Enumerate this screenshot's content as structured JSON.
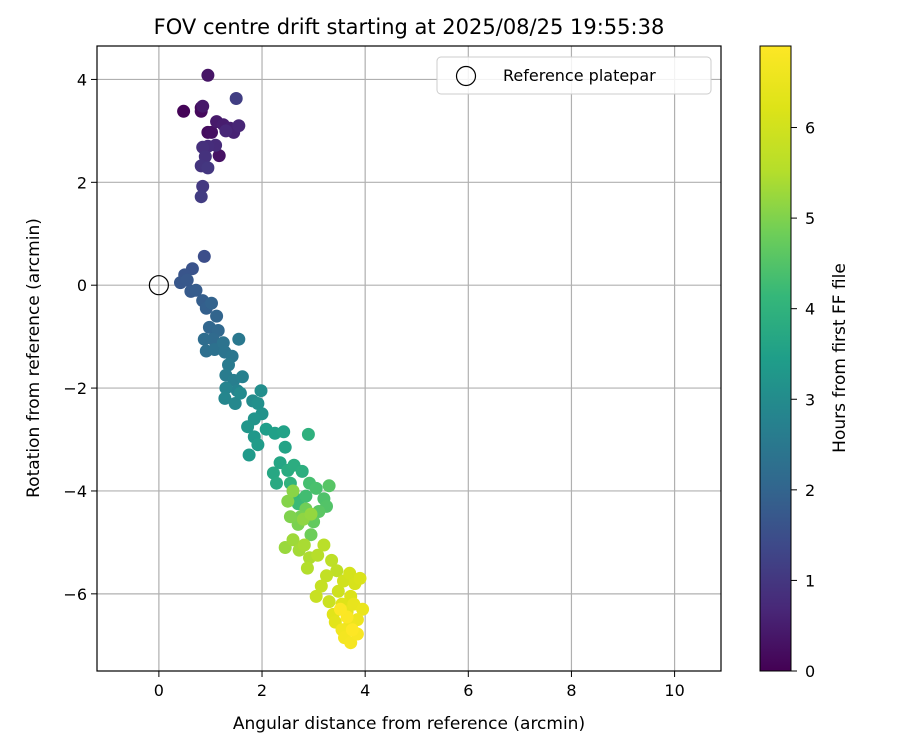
{
  "chart_data": {
    "type": "scatter",
    "title": "FOV centre drift starting at 2025/08/25 19:55:38",
    "xlabel": "Angular distance from reference (arcmin)",
    "ylabel": "Rotation from reference (arcmin)",
    "xlim": [
      -1.2,
      10.9
    ],
    "ylim": [
      -7.5,
      4.65
    ],
    "xticks": [
      0,
      2,
      4,
      6,
      8,
      10
    ],
    "yticks": [
      4,
      2,
      0,
      -2,
      -4,
      -6
    ],
    "xtick_labels": [
      "0",
      "2",
      "4",
      "6",
      "8",
      "10"
    ],
    "ytick_labels": [
      "4",
      "2",
      "0",
      "−2",
      "−4",
      "−6"
    ],
    "grid": true,
    "legend": {
      "position": "top-right",
      "entries": [
        "Reference platepar"
      ]
    },
    "colorbar": {
      "label": "Hours from first FF file",
      "colormap": "viridis",
      "range": [
        0,
        6.9
      ],
      "ticks": [
        0,
        1,
        2,
        3,
        4,
        5,
        6
      ],
      "tick_labels": [
        "0",
        "1",
        "2",
        "3",
        "4",
        "5",
        "6"
      ]
    },
    "reference_point": {
      "x": 0,
      "y": 0
    },
    "series": [
      {
        "points": [
          [
            0.48,
            3.38,
            0.05
          ],
          [
            0.82,
            3.45,
            0.1
          ],
          [
            0.82,
            3.38,
            0.15
          ],
          [
            0.95,
            2.97,
            0.2
          ],
          [
            1.02,
            2.97,
            0.25
          ],
          [
            1.17,
            2.52,
            0.3
          ],
          [
            0.95,
            4.08,
            0.35
          ],
          [
            0.85,
            3.48,
            0.4
          ],
          [
            1.12,
            3.18,
            0.45
          ],
          [
            1.25,
            3.12,
            0.5
          ],
          [
            1.38,
            3.05,
            0.55
          ],
          [
            1.45,
            2.97,
            0.6
          ],
          [
            1.55,
            3.1,
            0.65
          ],
          [
            1.3,
            3.0,
            0.7
          ],
          [
            1.1,
            2.72,
            0.75
          ],
          [
            0.95,
            2.7,
            0.8
          ],
          [
            0.85,
            2.68,
            0.85
          ],
          [
            0.9,
            2.5,
            0.9
          ],
          [
            0.82,
            2.32,
            0.95
          ],
          [
            0.95,
            2.28,
            1.0
          ],
          [
            0.85,
            1.92,
            1.05
          ],
          [
            0.82,
            1.72,
            1.1
          ],
          [
            1.5,
            3.63,
            1.15
          ],
          [
            0.88,
            0.56,
            1.5
          ],
          [
            0.65,
            0.32,
            1.6
          ],
          [
            0.5,
            0.2,
            1.65
          ],
          [
            0.42,
            0.05,
            1.7
          ],
          [
            0.55,
            0.1,
            1.72
          ],
          [
            0.62,
            -0.12,
            1.75
          ],
          [
            0.72,
            -0.1,
            1.8
          ],
          [
            0.85,
            -0.3,
            1.85
          ],
          [
            0.92,
            -0.45,
            1.9
          ],
          [
            1.02,
            -0.35,
            1.95
          ],
          [
            1.12,
            -0.6,
            2.0
          ],
          [
            0.98,
            -0.82,
            2.05
          ],
          [
            1.15,
            -0.88,
            2.1
          ],
          [
            1.05,
            -1.05,
            2.15
          ],
          [
            0.88,
            -1.05,
            2.2
          ],
          [
            0.92,
            -1.28,
            2.25
          ],
          [
            1.08,
            -1.25,
            2.3
          ],
          [
            1.25,
            -1.12,
            2.35
          ],
          [
            1.28,
            -1.3,
            2.4
          ],
          [
            1.42,
            -1.38,
            2.45
          ],
          [
            1.55,
            -1.05,
            2.5
          ],
          [
            1.35,
            -1.55,
            2.55
          ],
          [
            1.3,
            -1.75,
            2.6
          ],
          [
            1.45,
            -1.85,
            2.65
          ],
          [
            1.62,
            -1.78,
            2.7
          ],
          [
            1.52,
            -2.05,
            2.75
          ],
          [
            1.3,
            -2.0,
            2.8
          ],
          [
            1.28,
            -2.2,
            2.85
          ],
          [
            1.48,
            -2.3,
            2.9
          ],
          [
            1.58,
            -2.1,
            2.95
          ],
          [
            1.82,
            -2.25,
            3.0
          ],
          [
            1.98,
            -2.05,
            3.05
          ],
          [
            1.92,
            -2.3,
            3.1
          ],
          [
            2.0,
            -2.5,
            3.15
          ],
          [
            1.85,
            -2.6,
            3.2
          ],
          [
            1.72,
            -2.75,
            3.25
          ],
          [
            1.85,
            -2.95,
            3.3
          ],
          [
            1.75,
            -3.3,
            3.35
          ],
          [
            1.92,
            -3.1,
            3.4
          ],
          [
            2.08,
            -2.8,
            3.45
          ],
          [
            2.25,
            -2.88,
            3.5
          ],
          [
            2.42,
            -2.85,
            3.55
          ],
          [
            2.45,
            -3.15,
            3.6
          ],
          [
            2.35,
            -3.45,
            3.65
          ],
          [
            2.22,
            -3.65,
            3.7
          ],
          [
            2.28,
            -3.85,
            3.75
          ],
          [
            2.5,
            -3.6,
            3.8
          ],
          [
            2.62,
            -3.5,
            3.85
          ],
          [
            2.78,
            -3.62,
            3.9
          ],
          [
            2.9,
            -2.9,
            3.95
          ],
          [
            2.55,
            -3.85,
            4.0
          ],
          [
            2.62,
            -4.12,
            4.1
          ],
          [
            2.7,
            -4.25,
            4.2
          ],
          [
            2.85,
            -4.1,
            4.3
          ],
          [
            2.92,
            -3.85,
            4.35
          ],
          [
            3.05,
            -3.95,
            4.4
          ],
          [
            3.2,
            -4.15,
            4.45
          ],
          [
            3.25,
            -4.3,
            4.5
          ],
          [
            3.3,
            -3.9,
            4.55
          ],
          [
            3.1,
            -4.4,
            4.6
          ],
          [
            3.0,
            -4.6,
            4.7
          ],
          [
            2.95,
            -4.85,
            4.8
          ],
          [
            2.85,
            -4.35,
            4.85
          ],
          [
            2.75,
            -4.5,
            4.9
          ],
          [
            2.7,
            -4.65,
            4.95
          ],
          [
            2.55,
            -4.5,
            5.0
          ],
          [
            2.5,
            -4.2,
            5.05
          ],
          [
            2.6,
            -4.0,
            5.1
          ],
          [
            2.8,
            -4.55,
            5.15
          ],
          [
            2.95,
            -4.45,
            5.2
          ],
          [
            2.45,
            -5.1,
            5.25
          ],
          [
            2.6,
            -4.95,
            5.3
          ],
          [
            2.72,
            -5.15,
            5.35
          ],
          [
            2.82,
            -5.05,
            5.4
          ],
          [
            2.92,
            -5.3,
            5.45
          ],
          [
            2.88,
            -5.5,
            5.5
          ],
          [
            3.08,
            -5.25,
            5.55
          ],
          [
            3.2,
            -5.05,
            5.6
          ],
          [
            3.35,
            -5.35,
            5.65
          ],
          [
            3.45,
            -5.55,
            5.7
          ],
          [
            3.25,
            -5.65,
            5.75
          ],
          [
            3.15,
            -5.85,
            5.8
          ],
          [
            3.05,
            -6.05,
            5.85
          ],
          [
            3.3,
            -6.15,
            5.9
          ],
          [
            3.48,
            -5.95,
            5.95
          ],
          [
            3.58,
            -5.75,
            6.0
          ],
          [
            3.7,
            -5.6,
            6.05
          ],
          [
            3.8,
            -5.8,
            6.1
          ],
          [
            3.9,
            -5.7,
            6.15
          ],
          [
            3.72,
            -6.05,
            6.2
          ],
          [
            3.55,
            -6.2,
            6.25
          ],
          [
            3.38,
            -6.4,
            6.3
          ],
          [
            3.42,
            -6.55,
            6.35
          ],
          [
            3.65,
            -6.35,
            6.4
          ],
          [
            3.78,
            -6.2,
            6.45
          ],
          [
            3.95,
            -6.3,
            6.5
          ],
          [
            3.85,
            -6.5,
            6.55
          ],
          [
            3.7,
            -6.6,
            6.6
          ],
          [
            3.55,
            -6.7,
            6.65
          ],
          [
            3.6,
            -6.85,
            6.7
          ],
          [
            3.72,
            -6.95,
            6.75
          ],
          [
            3.85,
            -6.78,
            6.8
          ],
          [
            3.65,
            -6.45,
            6.85
          ],
          [
            3.52,
            -6.3,
            6.88
          ],
          [
            3.75,
            -6.7,
            6.9
          ]
        ]
      }
    ]
  }
}
